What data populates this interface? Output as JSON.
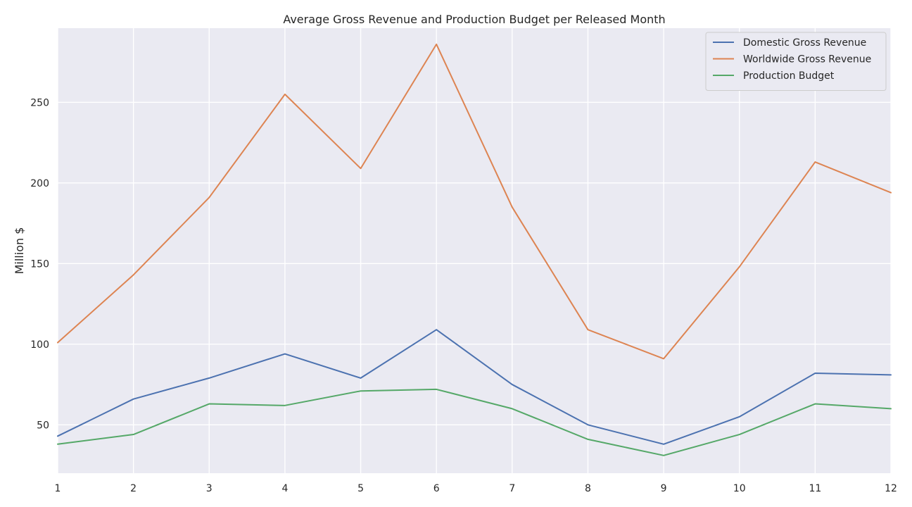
{
  "chart_data": {
    "type": "line",
    "title": "Average Gross Revenue and Production Budget per Released Month",
    "xlabel": "",
    "ylabel": "Million $",
    "x": [
      1,
      2,
      3,
      4,
      5,
      6,
      7,
      8,
      9,
      10,
      11,
      12
    ],
    "xlim": [
      1,
      12
    ],
    "ylim": [
      20,
      296
    ],
    "yticks": [
      50,
      100,
      150,
      200,
      250
    ],
    "grid": true,
    "legend_position": "top-right",
    "series": [
      {
        "name": "Domestic Gross Revenue",
        "color": "#4c72b0",
        "values": [
          43,
          66,
          79,
          94,
          79,
          109,
          75,
          50,
          38,
          55,
          82,
          81
        ]
      },
      {
        "name": "Worldwide Gross Revenue",
        "color": "#dd8452",
        "values": [
          101,
          143,
          191,
          255,
          209,
          286,
          185,
          109,
          91,
          148,
          213,
          194
        ]
      },
      {
        "name": "Production Budget",
        "color": "#55a868",
        "values": [
          38,
          44,
          63,
          62,
          71,
          72,
          60,
          41,
          31,
          44,
          63,
          60
        ]
      }
    ]
  }
}
